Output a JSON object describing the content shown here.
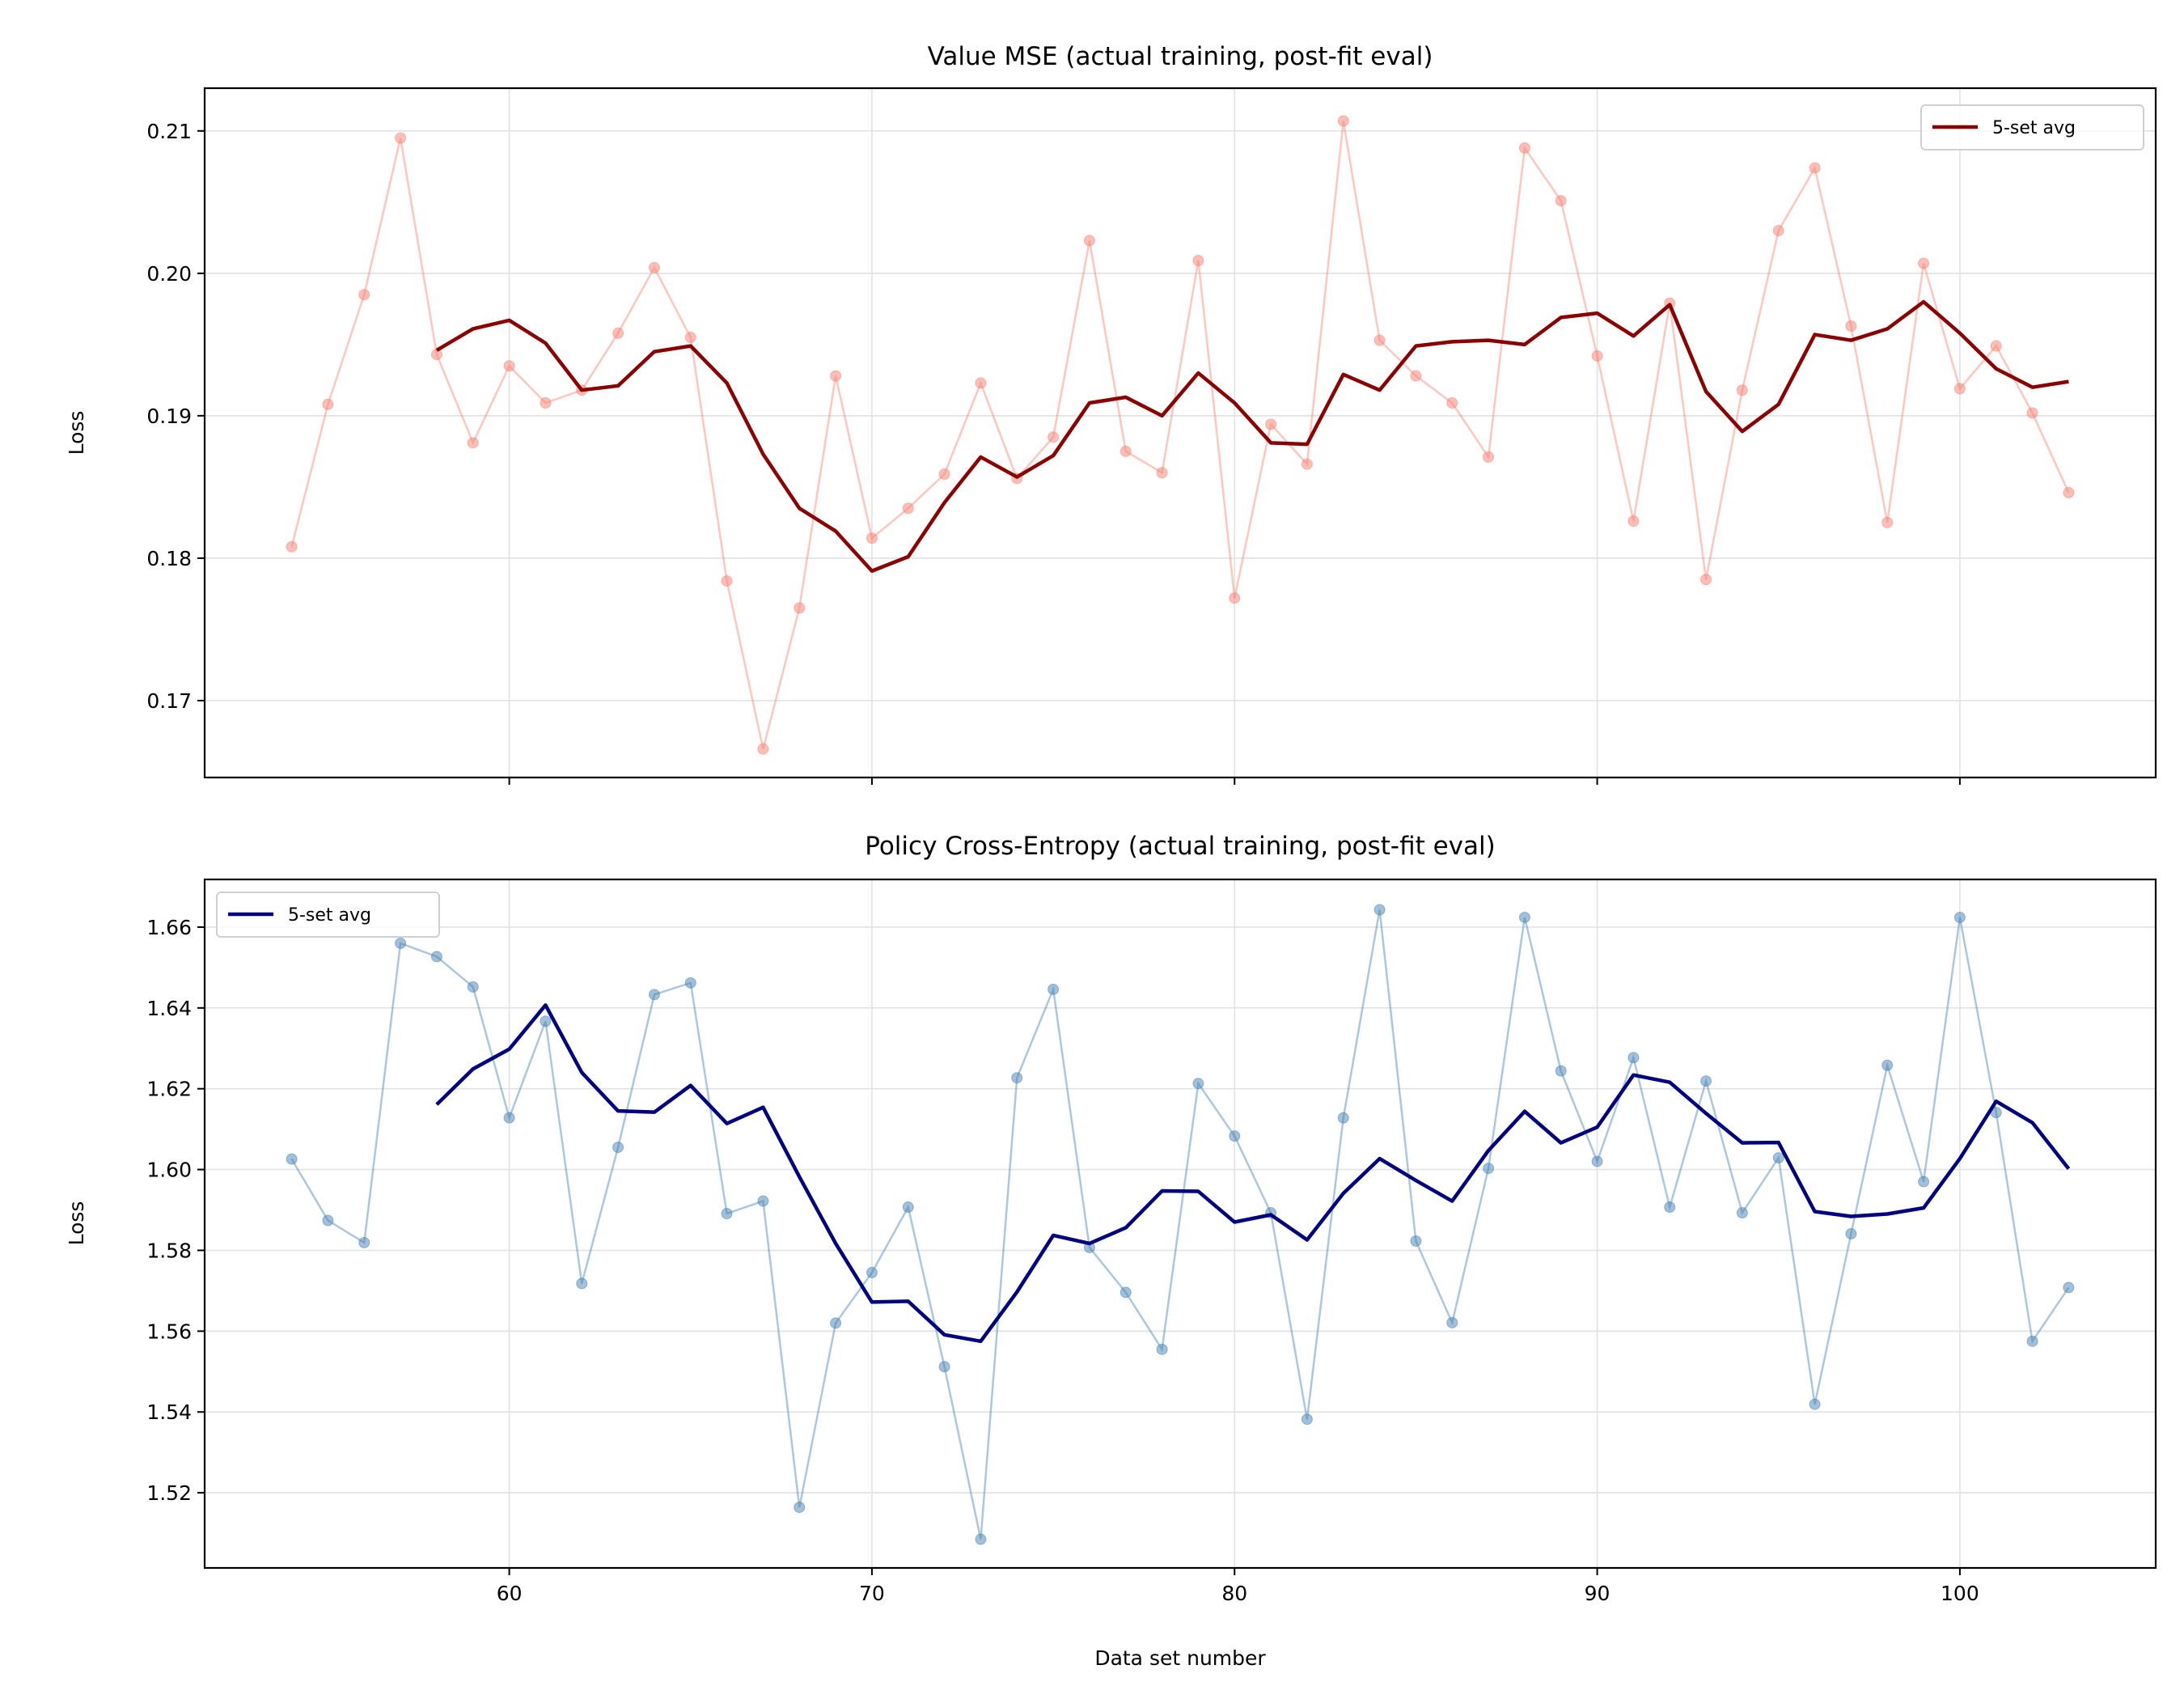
{
  "chart_data": [
    {
      "type": "line",
      "title": "Value MSE (actual training, post-fit eval)",
      "xlabel": "",
      "ylabel": "Loss",
      "xlim": [
        51.6,
        105.4
      ],
      "ylim": [
        0.1646,
        0.213
      ],
      "xticks": [
        60,
        70,
        80,
        90,
        100
      ],
      "xtick_labels_visible": false,
      "yticks": [
        0.17,
        0.18,
        0.19,
        0.2,
        0.21
      ],
      "ytick_labels": [
        "0.17",
        "0.18",
        "0.19",
        "0.20",
        "0.21"
      ],
      "grid": true,
      "legend": {
        "placement": "top-right",
        "entries": [
          "5-set avg"
        ]
      },
      "raw": {
        "color": "#fa8072",
        "x": [
          54,
          55,
          56,
          57,
          58,
          59,
          60,
          61,
          62,
          63,
          64,
          65,
          66,
          67,
          68,
          69,
          70,
          71,
          72,
          73,
          74,
          75,
          76,
          77,
          78,
          79,
          80,
          81,
          82,
          83,
          84,
          85,
          86,
          87,
          88,
          89,
          90,
          91,
          92,
          93,
          94,
          95,
          96,
          97,
          98,
          99,
          100,
          101,
          102,
          103
        ],
        "values": [
          0.1808,
          0.1908,
          0.1985,
          0.2095,
          0.1943,
          0.1881,
          0.1935,
          0.1909,
          0.1918,
          0.1958,
          0.2004,
          0.1955,
          0.1784,
          0.1666,
          0.1765,
          0.1928,
          0.1814,
          0.1835,
          0.1859,
          0.1923,
          0.1856,
          0.1885,
          0.2023,
          0.1875,
          0.186,
          0.2009,
          0.1772,
          0.1894,
          0.1866,
          0.2107,
          0.1953,
          0.1928,
          0.1909,
          0.1871,
          0.2088,
          0.2051,
          0.1942,
          0.1826,
          0.1979,
          0.1785,
          0.1918,
          0.203,
          0.2074,
          0.1963,
          0.1825,
          0.2007,
          0.1919,
          0.1949,
          0.1902,
          0.1846
        ]
      },
      "series": [
        {
          "name": "5-set avg",
          "color": "#8b0000",
          "x": [
            58,
            59,
            60,
            61,
            62,
            63,
            64,
            65,
            66,
            67,
            68,
            69,
            70,
            71,
            72,
            73,
            74,
            75,
            76,
            77,
            78,
            79,
            80,
            81,
            82,
            83,
            84,
            85,
            86,
            87,
            88,
            89,
            90,
            91,
            92,
            93,
            94,
            95,
            96,
            97,
            98,
            99,
            100,
            101,
            102,
            103
          ],
          "values": [
            0.1946,
            0.1961,
            0.1967,
            0.1951,
            0.1918,
            0.1921,
            0.1945,
            0.1949,
            0.1923,
            0.1873,
            0.1835,
            0.1819,
            0.1791,
            0.1801,
            0.1839,
            0.1871,
            0.1857,
            0.1872,
            0.1909,
            0.1913,
            0.19,
            0.193,
            0.1909,
            0.1881,
            0.188,
            0.1929,
            0.1918,
            0.1949,
            0.1952,
            0.1953,
            0.195,
            0.1969,
            0.1972,
            0.1956,
            0.1978,
            0.1917,
            0.1889,
            0.1908,
            0.1957,
            0.1953,
            0.1961,
            0.198,
            0.1958,
            0.1933,
            0.192,
            0.1924
          ]
        }
      ]
    },
    {
      "type": "line",
      "title": "Policy Cross-Entropy (actual training, post-fit eval)",
      "xlabel": "Data set number",
      "ylabel": "Loss",
      "xlim": [
        51.6,
        105.4
      ],
      "ylim": [
        1.5014,
        1.6718
      ],
      "xticks": [
        60,
        70,
        80,
        90,
        100
      ],
      "xtick_labels": [
        "60",
        "70",
        "80",
        "90",
        "100"
      ],
      "yticks": [
        1.52,
        1.54,
        1.56,
        1.58,
        1.6,
        1.62,
        1.64,
        1.66
      ],
      "ytick_labels": [
        "1.52",
        "1.54",
        "1.56",
        "1.58",
        "1.60",
        "1.62",
        "1.64",
        "1.66"
      ],
      "grid": true,
      "legend": {
        "placement": "top-left",
        "entries": [
          "5-set avg"
        ]
      },
      "raw": {
        "color": "#4682b4",
        "x": [
          54,
          55,
          56,
          57,
          58,
          59,
          60,
          61,
          62,
          63,
          64,
          65,
          66,
          67,
          68,
          69,
          70,
          71,
          72,
          73,
          74,
          75,
          76,
          77,
          78,
          79,
          80,
          81,
          82,
          83,
          84,
          85,
          86,
          87,
          88,
          89,
          90,
          91,
          92,
          93,
          94,
          95,
          96,
          97,
          98,
          99,
          100,
          101,
          102,
          103
        ],
        "values": [
          1.6026,
          1.5874,
          1.5819,
          1.656,
          1.6527,
          1.6452,
          1.6128,
          1.6367,
          1.5718,
          1.6055,
          1.6433,
          1.6462,
          1.5891,
          1.5922,
          1.5164,
          1.562,
          1.5745,
          1.5907,
          1.5512,
          1.5085,
          1.6227,
          1.6446,
          1.5807,
          1.5696,
          1.5555,
          1.6213,
          1.6083,
          1.5893,
          1.5382,
          1.6128,
          1.6643,
          1.5823,
          1.5621,
          1.6003,
          1.6624,
          1.6244,
          1.602,
          1.6277,
          1.5907,
          1.6219,
          1.5893,
          1.6029,
          1.5419,
          1.5841,
          1.6258,
          1.597,
          1.6624,
          1.6141,
          1.5575,
          1.5708
        ]
      },
      "series": [
        {
          "name": "5-set avg",
          "color": "#000080",
          "x": [
            58,
            59,
            60,
            61,
            62,
            63,
            64,
            65,
            66,
            67,
            68,
            69,
            70,
            71,
            72,
            73,
            74,
            75,
            76,
            77,
            78,
            79,
            80,
            81,
            82,
            83,
            84,
            85,
            86,
            87,
            88,
            89,
            90,
            91,
            92,
            93,
            94,
            95,
            96,
            97,
            98,
            99,
            100,
            101,
            102,
            103
          ],
          "values": [
            1.6161,
            1.6249,
            1.6298,
            1.6407,
            1.624,
            1.6145,
            1.6142,
            1.6208,
            1.6114,
            1.6154,
            1.5982,
            1.5817,
            1.5672,
            1.5674,
            1.5591,
            1.5575,
            1.5697,
            1.5837,
            1.5817,
            1.5856,
            1.5947,
            1.5946,
            1.587,
            1.5888,
            1.5826,
            1.5941,
            1.6027,
            1.5973,
            1.5922,
            1.6047,
            1.6144,
            1.6066,
            1.6105,
            1.6234,
            1.6216,
            1.6139,
            1.6066,
            1.6067,
            1.5896,
            1.5884,
            1.589,
            1.5905,
            1.6027,
            1.6169,
            1.6116,
            1.6002
          ]
        }
      ]
    }
  ]
}
